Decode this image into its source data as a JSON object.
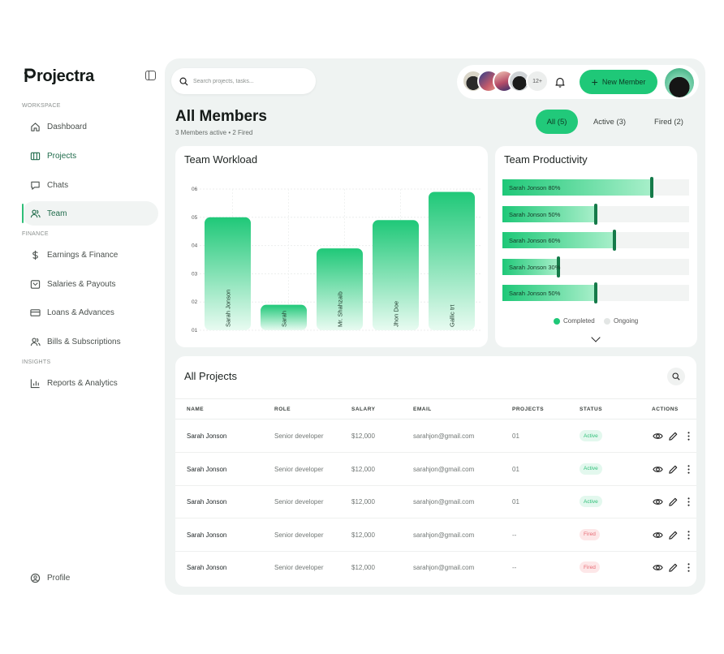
{
  "app": {
    "name_rest": "rojectra"
  },
  "sidebar": {
    "workspace_label": "WORKSPACE",
    "finance_label": "FINANCE",
    "insights_label": "INSIGHTS",
    "workspace_items": [
      {
        "label": "Dashboard",
        "icon": "home-icon"
      },
      {
        "label": "Projects",
        "icon": "projects-icon"
      },
      {
        "label": "Chats",
        "icon": "chat-icon"
      },
      {
        "label": "Team",
        "icon": "team-icon",
        "active": true
      }
    ],
    "finance_items": [
      {
        "label": "Earnings & Finance",
        "icon": "dollar-icon"
      },
      {
        "label": "Salaries & Payouts",
        "icon": "wallet-icon"
      },
      {
        "label": "Loans & Advances",
        "icon": "card-icon"
      },
      {
        "label": "Bills & Subscriptions",
        "icon": "users-icon"
      }
    ],
    "insights_items": [
      {
        "label": "Reports & Analytics",
        "icon": "chart-icon"
      }
    ],
    "profile_label": "Profile"
  },
  "header": {
    "search_placeholder": "Search projects, tasks...",
    "more_count": "12+",
    "new_member_label": "New Member"
  },
  "page": {
    "title": "All Members",
    "subtitle": "3 Members active • 2 Fired",
    "filters": [
      {
        "label": "All (5)",
        "selected": true
      },
      {
        "label": "Active (3)",
        "selected": false
      },
      {
        "label": "Fired (2)",
        "selected": false
      }
    ]
  },
  "workload": {
    "title": "Team Workload",
    "chart_data": {
      "type": "bar",
      "categories": [
        "Sarah Jonson",
        "Sarah",
        "Mr. Shahzaib",
        "Jhon Doe",
        "Gallic trt"
      ],
      "values": [
        5.0,
        1.9,
        3.9,
        4.9,
        5.9
      ],
      "ytick_labels": [
        "01",
        "02",
        "03",
        "04",
        "05",
        "06"
      ],
      "ylim": [
        1,
        6
      ],
      "grid": true,
      "bar_color": "#1fc878"
    }
  },
  "productivity": {
    "title": "Team Productivity",
    "chart_data": {
      "type": "bar",
      "orientation": "horizontal",
      "rows": [
        {
          "label": "Sarah Jonson 80%",
          "completed": 80
        },
        {
          "label": "Sarah Jonson 50%",
          "completed": 50
        },
        {
          "label": "Sarah Jonson 60%",
          "completed": 60
        },
        {
          "label": "Sarah Jonson 30%",
          "completed": 30
        },
        {
          "label": "Sarah Jonson 50%",
          "completed": 50
        }
      ],
      "legend": [
        "Completed",
        "Ongoing"
      ],
      "legend_placement": "bottom",
      "completed_color": "#1fc878",
      "ongoing_color": "#e3e6e5"
    }
  },
  "projects": {
    "title": "All Projects",
    "columns": [
      "NAME",
      "ROLE",
      "SALARY",
      "EMAIL",
      "PROJECTS",
      "STATUS",
      "ACTIONS"
    ],
    "rows": [
      {
        "name": "Sarah Jonson",
        "role": "Senior developer",
        "salary": "$12,000",
        "email": "sarahjon@gmail.com",
        "projects": "01",
        "status": "Active"
      },
      {
        "name": "Sarah Jonson",
        "role": "Senior developer",
        "salary": "$12,000",
        "email": "sarahjon@gmail.com",
        "projects": "01",
        "status": "Active"
      },
      {
        "name": "Sarah Jonson",
        "role": "Senior developer",
        "salary": "$12,000",
        "email": "sarahjon@gmail.com",
        "projects": "01",
        "status": "Active"
      },
      {
        "name": "Sarah Jonson",
        "role": "Senior developer",
        "salary": "$12,000",
        "email": "sarahjon@gmail.com",
        "projects": "--",
        "status": "Fired"
      },
      {
        "name": "Sarah Jonson",
        "role": "Senior developer",
        "salary": "$12,000",
        "email": "sarahjon@gmail.com",
        "projects": "--",
        "status": "Fired"
      }
    ]
  }
}
